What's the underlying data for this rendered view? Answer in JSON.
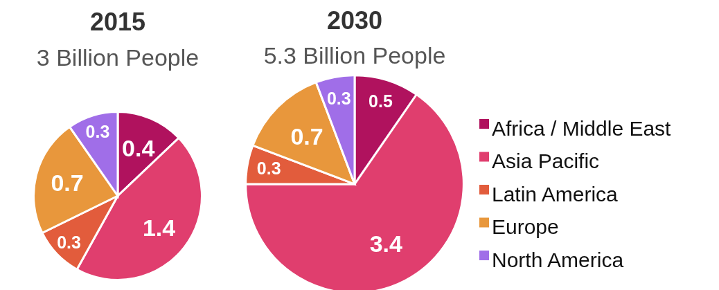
{
  "chart_data": [
    {
      "type": "pie",
      "title": "2015",
      "subtitle": "3 Billion People",
      "categories": [
        null,
        null,
        null,
        null,
        null
      ],
      "values": [
        0.4,
        1.4,
        0.3,
        0.7,
        0.3
      ],
      "colors": [
        "#b0125e",
        "#e03e6e",
        "#e25c3c",
        "#e8973c",
        "#a06ee8"
      ],
      "data_labels": true,
      "legend": false
    },
    {
      "type": "pie",
      "title": "2030",
      "subtitle": "5.3 Billion People",
      "categories": [
        "Africa / Middle East",
        "Asia Pacific",
        "Latin America",
        "Europe",
        "North America"
      ],
      "values": [
        0.5,
        3.4,
        0.3,
        0.7,
        0.3
      ],
      "colors": [
        "#b0125e",
        "#e03e6e",
        "#e25c3c",
        "#e8973c",
        "#a06ee8"
      ],
      "data_labels": true,
      "legend": "right"
    }
  ]
}
